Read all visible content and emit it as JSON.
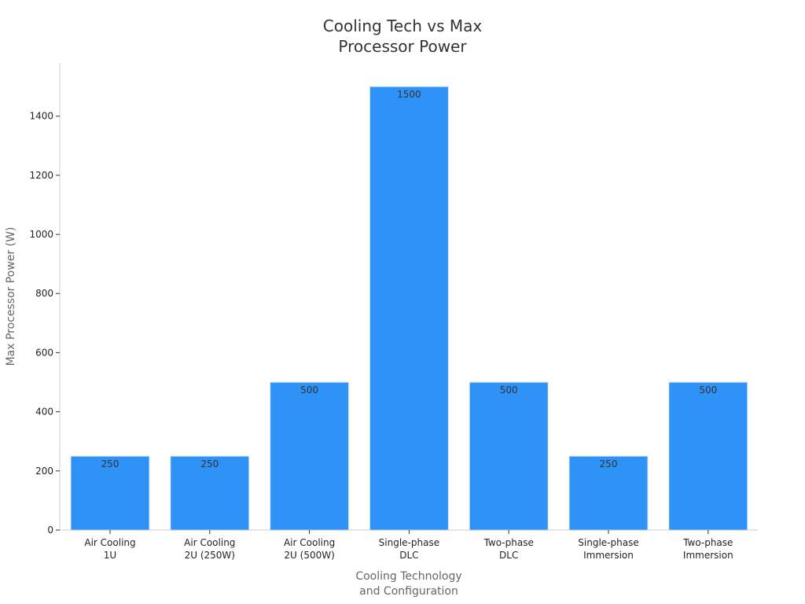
{
  "chart_data": {
    "type": "bar",
    "title": [
      "Cooling Tech vs Max",
      "Processor Power"
    ],
    "xlabel": [
      "Cooling Technology",
      "and Configuration"
    ],
    "ylabel": "Max Processor Power (W)",
    "categories": [
      [
        "Air Cooling",
        "1U"
      ],
      [
        "Air Cooling",
        "2U (250W)"
      ],
      [
        "Air Cooling",
        "2U (500W)"
      ],
      [
        "Single-phase",
        "DLC"
      ],
      [
        "Two-phase",
        "DLC"
      ],
      [
        "Single-phase",
        "Immersion"
      ],
      [
        "Two-phase",
        "Immersion"
      ]
    ],
    "values": [
      250,
      250,
      500,
      1500,
      500,
      250,
      500
    ],
    "data_labels": [
      "250",
      "250",
      "500",
      "1500",
      "500",
      "250",
      "500"
    ],
    "yticks": [
      0,
      200,
      400,
      600,
      800,
      1000,
      1200,
      1400
    ],
    "ylim": [
      0,
      1580
    ],
    "grid": false,
    "bar_color": "#2f92f7",
    "bar_edge_color": "#d8e6f5"
  }
}
